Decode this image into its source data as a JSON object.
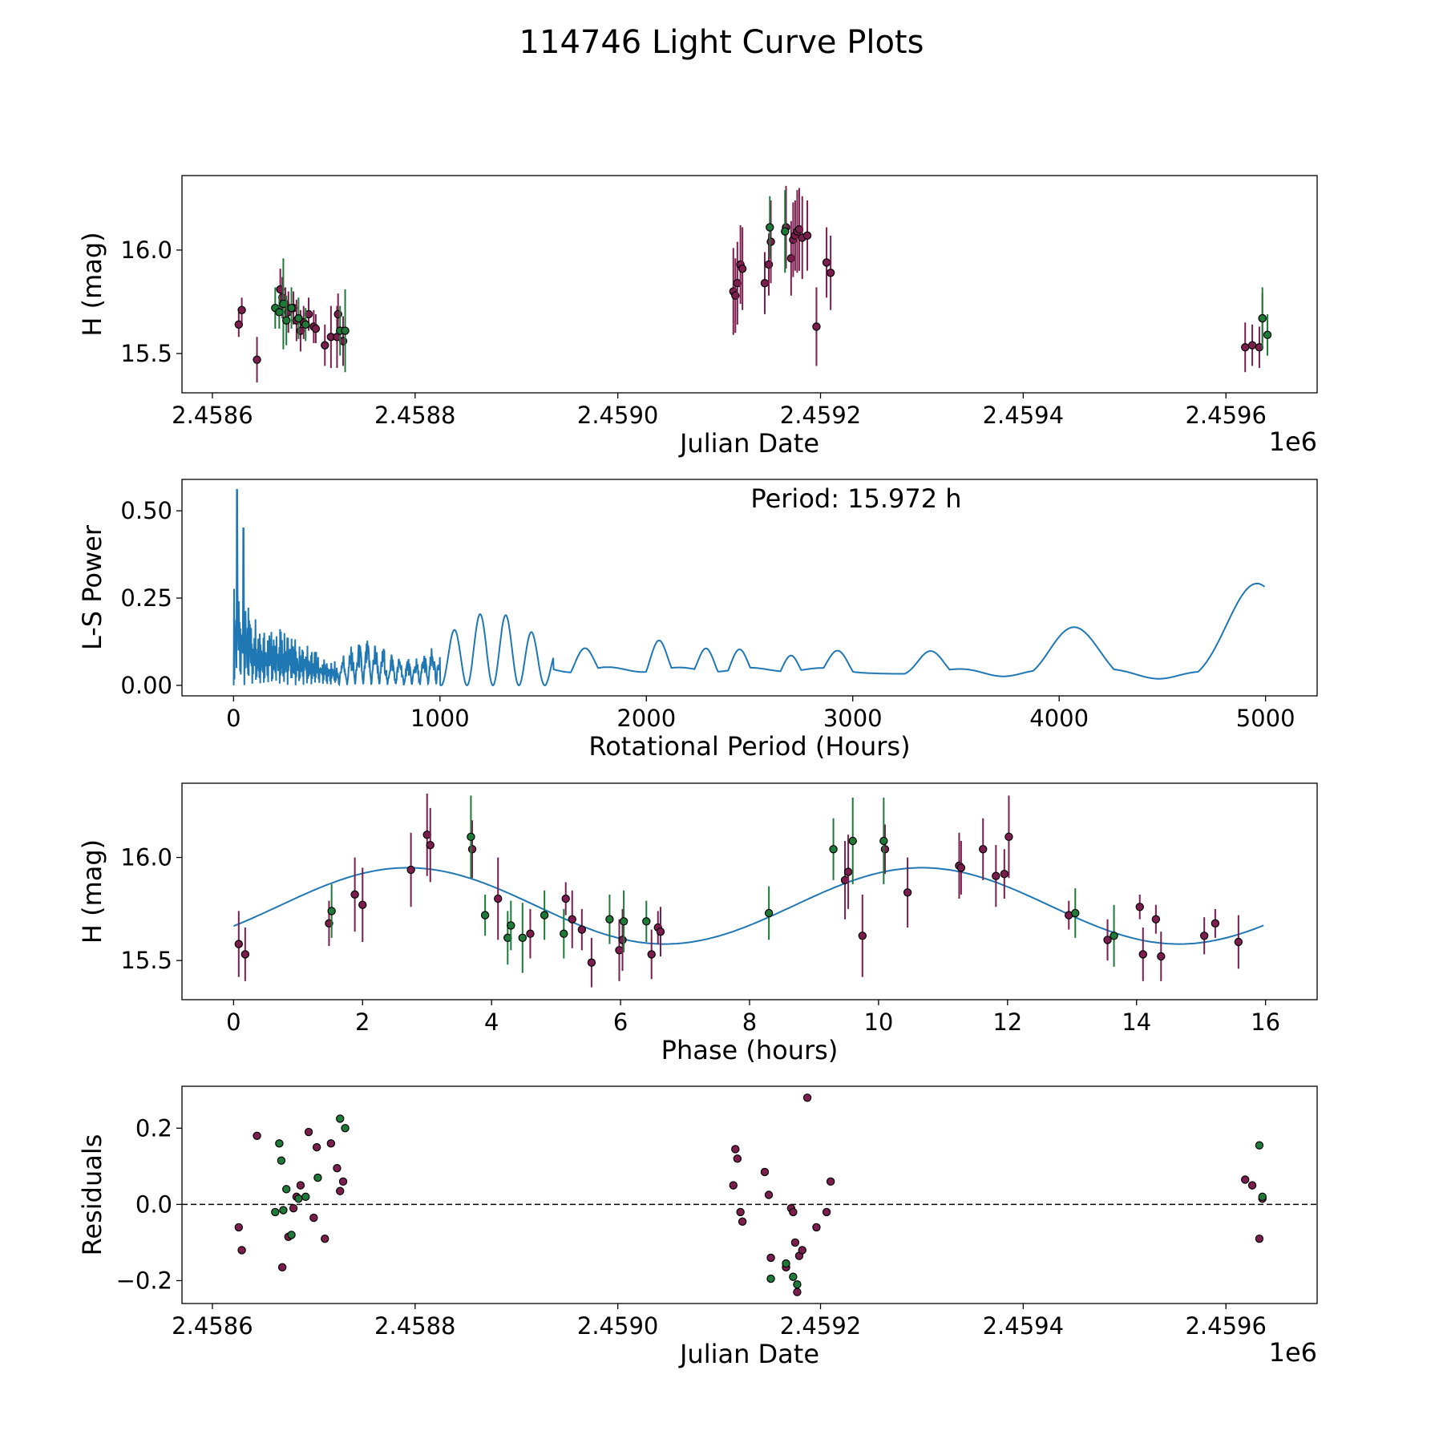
{
  "title": "114746 Light Curve Plots",
  "colors": {
    "maroon": "#7b1e4e",
    "green": "#1f7a3a",
    "blue": "#1f77b4",
    "edge": "#000000"
  },
  "chart_data": [
    {
      "id": "lightcurve",
      "type": "scatter",
      "xlabel": "Julian Date",
      "ylabel": "H (mag)",
      "offset_text": "1e6",
      "xlim": [
        2458570,
        2459690
      ],
      "ylim": [
        15.31,
        16.36
      ],
      "xticks": [
        2458600,
        2458800,
        2459000,
        2459200,
        2459400,
        2459600
      ],
      "xtick_labels": [
        "2.4586",
        "2.4588",
        "2.4590",
        "2.4592",
        "2.4594",
        "2.4596"
      ],
      "yticks": [
        15.5,
        16.0
      ],
      "ytick_labels": [
        "15.5",
        "16.0"
      ],
      "series": [
        {
          "name": "maroon",
          "x": [
            2458626,
            2458629,
            2458644,
            2458667,
            2458669,
            2458672,
            2458675,
            2458680,
            2458683,
            2458687,
            2458690,
            2458695,
            2458700,
            2458702,
            2458711,
            2458717,
            2458723,
            2458724,
            2458729,
            2459114,
            2459116,
            2459118,
            2459121,
            2459123,
            2459145,
            2459149,
            2459151,
            2459166,
            2459171,
            2459173,
            2459175,
            2459177,
            2459179,
            2459182,
            2459187,
            2459196,
            2459206,
            2459210,
            2459619,
            2459626,
            2459633,
            2459636
          ],
          "y": [
            15.64,
            15.71,
            15.47,
            15.81,
            15.77,
            15.74,
            15.7,
            15.72,
            15.66,
            15.61,
            15.65,
            15.69,
            15.63,
            15.62,
            15.54,
            15.58,
            15.58,
            15.69,
            15.56,
            15.8,
            15.78,
            15.84,
            15.93,
            15.91,
            15.84,
            15.93,
            16.04,
            16.11,
            15.96,
            16.05,
            16.07,
            16.09,
            16.1,
            16.06,
            16.07,
            15.63,
            15.94,
            15.89,
            15.53,
            15.54,
            15.53,
            15.67
          ],
          "yerr": [
            0.06,
            0.06,
            0.11,
            0.1,
            0.1,
            0.08,
            0.1,
            0.08,
            0.1,
            0.1,
            0.08,
            0.08,
            0.08,
            0.07,
            0.1,
            0.15,
            0.15,
            0.1,
            0.12,
            0.21,
            0.18,
            0.2,
            0.19,
            0.2,
            0.15,
            0.15,
            0.2,
            0.2,
            0.18,
            0.18,
            0.17,
            0.2,
            0.2,
            0.2,
            0.17,
            0.19,
            0.17,
            0.18,
            0.12,
            0.1,
            0.1,
            0.12
          ]
        },
        {
          "name": "green",
          "x": [
            2458662,
            2458666,
            2458670,
            2458673,
            2458678,
            2458685,
            2458692,
            2458726,
            2458731,
            2459150,
            2459165,
            2459636,
            2459641
          ],
          "y": [
            15.72,
            15.7,
            15.74,
            15.66,
            15.72,
            15.67,
            15.64,
            15.61,
            15.61,
            16.11,
            16.09,
            15.67,
            15.59
          ],
          "yerr": [
            0.1,
            0.08,
            0.22,
            0.12,
            0.1,
            0.1,
            0.08,
            0.12,
            0.2,
            0.15,
            0.2,
            0.15,
            0.1
          ]
        }
      ]
    },
    {
      "id": "periodogram",
      "type": "line",
      "xlabel": "Rotational Period (Hours)",
      "ylabel": "L-S Power",
      "annotation": "Period: 15.972 h",
      "xlim": [
        -250,
        5250
      ],
      "ylim": [
        -0.03,
        0.59
      ],
      "xticks": [
        0,
        1000,
        2000,
        3000,
        4000,
        5000
      ],
      "xtick_labels": [
        "0",
        "1000",
        "2000",
        "3000",
        "4000",
        "5000"
      ],
      "yticks": [
        0.0,
        0.25,
        0.5
      ],
      "ytick_labels": [
        "0.00",
        "0.25",
        "0.50"
      ],
      "peak_period": 15.972,
      "peak_power": 0.56
    },
    {
      "id": "phased",
      "type": "scatter",
      "xlabel": "Phase (hours)",
      "ylabel": "H (mag)",
      "xlim": [
        -0.8,
        16.8
      ],
      "ylim": [
        15.31,
        16.36
      ],
      "xticks": [
        0,
        2,
        4,
        6,
        8,
        10,
        12,
        14,
        16
      ],
      "xtick_labels": [
        "0",
        "2",
        "4",
        "6",
        "8",
        "10",
        "12",
        "14",
        "16"
      ],
      "yticks": [
        15.5,
        16.0
      ],
      "ytick_labels": [
        "15.5",
        "16.0"
      ],
      "model": {
        "mean": 15.765,
        "amplitude": 0.185,
        "peak_phase": 2.7,
        "period": 7.972,
        "x_range": [
          0,
          15.97
        ]
      },
      "series": [
        {
          "name": "maroon",
          "x": [
            0.08,
            0.18,
            1.48,
            1.88,
            2.0,
            2.75,
            3.0,
            3.05,
            3.7,
            4.1,
            4.6,
            5.15,
            5.25,
            5.4,
            5.55,
            5.98,
            6.03,
            6.48,
            6.58,
            6.62,
            9.48,
            9.53,
            9.75,
            10.1,
            10.45,
            11.25,
            11.28,
            11.62,
            11.82,
            11.95,
            12.02,
            12.95,
            13.55,
            14.05,
            14.1,
            14.3,
            14.38,
            15.05,
            15.22,
            15.58
          ],
          "y": [
            15.58,
            15.53,
            15.68,
            15.82,
            15.77,
            15.94,
            16.11,
            16.06,
            16.04,
            15.8,
            15.63,
            15.8,
            15.7,
            15.65,
            15.49,
            15.55,
            15.6,
            15.53,
            15.66,
            15.64,
            15.89,
            15.93,
            15.62,
            16.04,
            15.83,
            15.96,
            15.95,
            16.04,
            15.91,
            15.92,
            16.1,
            15.72,
            15.6,
            15.76,
            15.53,
            15.7,
            15.52,
            15.62,
            15.68,
            15.59
          ],
          "yerr": [
            0.16,
            0.13,
            0.11,
            0.18,
            0.18,
            0.18,
            0.2,
            0.18,
            0.14,
            0.2,
            0.12,
            0.08,
            0.14,
            0.1,
            0.12,
            0.15,
            0.15,
            0.12,
            0.08,
            0.12,
            0.19,
            0.18,
            0.2,
            0.12,
            0.17,
            0.16,
            0.13,
            0.15,
            0.15,
            0.12,
            0.2,
            0.07,
            0.1,
            0.06,
            0.13,
            0.07,
            0.12,
            0.09,
            0.07,
            0.13
          ]
        },
        {
          "name": "green",
          "x": [
            1.52,
            3.68,
            3.9,
            4.25,
            4.3,
            4.48,
            4.82,
            5.12,
            5.83,
            6.05,
            6.4,
            8.3,
            9.3,
            9.6,
            10.08,
            13.05,
            13.65
          ],
          "y": [
            15.74,
            16.1,
            15.72,
            15.61,
            15.67,
            15.61,
            15.72,
            15.63,
            15.7,
            15.69,
            15.69,
            15.73,
            16.04,
            16.08,
            16.08,
            15.73,
            15.62
          ],
          "yerr": [
            0.13,
            0.2,
            0.1,
            0.13,
            0.12,
            0.17,
            0.12,
            0.12,
            0.12,
            0.15,
            0.1,
            0.13,
            0.15,
            0.21,
            0.21,
            0.12,
            0.15
          ]
        }
      ]
    },
    {
      "id": "residuals",
      "type": "scatter",
      "xlabel": "Julian Date",
      "ylabel": "Residuals",
      "offset_text": "1e6",
      "xlim": [
        2458570,
        2459690
      ],
      "ylim": [
        -0.26,
        0.31
      ],
      "xticks": [
        2458600,
        2458800,
        2459000,
        2459200,
        2459400,
        2459600
      ],
      "xtick_labels": [
        "2.4586",
        "2.4588",
        "2.4590",
        "2.4592",
        "2.4594",
        "2.4596"
      ],
      "yticks": [
        -0.2,
        0.0,
        0.2
      ],
      "ytick_labels": [
        "−0.2",
        "0.0",
        "0.2"
      ],
      "reference_line": 0.0,
      "series": [
        {
          "name": "maroon",
          "x": [
            2458626,
            2458629,
            2458644,
            2458669,
            2458675,
            2458680,
            2458683,
            2458687,
            2458695,
            2458700,
            2458703,
            2458711,
            2458717,
            2458723,
            2458726,
            2458729,
            2459114,
            2459116,
            2459118,
            2459121,
            2459123,
            2459145,
            2459149,
            2459151,
            2459166,
            2459171,
            2459173,
            2459175,
            2459177,
            2459179,
            2459182,
            2459187,
            2459196,
            2459206,
            2459210,
            2459619,
            2459626,
            2459633,
            2459636
          ],
          "y": [
            -0.06,
            -0.12,
            0.18,
            -0.165,
            -0.085,
            -0.01,
            0.02,
            0.05,
            0.19,
            -0.035,
            0.15,
            -0.09,
            0.16,
            0.095,
            0.035,
            0.06,
            0.05,
            0.145,
            0.12,
            -0.02,
            -0.045,
            0.085,
            0.025,
            -0.14,
            -0.165,
            -0.01,
            -0.02,
            -0.1,
            -0.23,
            -0.135,
            -0.12,
            0.28,
            -0.06,
            -0.02,
            0.06,
            0.065,
            0.05,
            -0.09,
            0.015
          ],
          "note": "maroon residuals"
        },
        {
          "name": "green",
          "x": [
            2458662,
            2458666,
            2458668,
            2458670,
            2458673,
            2458678,
            2458685,
            2458692,
            2458704,
            2458726,
            2458731,
            2459151,
            2459166,
            2459173,
            2459177,
            2459633,
            2459636
          ],
          "y": [
            -0.02,
            0.16,
            0.115,
            -0.015,
            0.04,
            -0.08,
            0.015,
            0.02,
            0.07,
            0.225,
            0.2,
            -0.195,
            -0.155,
            -0.19,
            -0.21,
            0.155,
            0.02
          ]
        }
      ]
    }
  ]
}
